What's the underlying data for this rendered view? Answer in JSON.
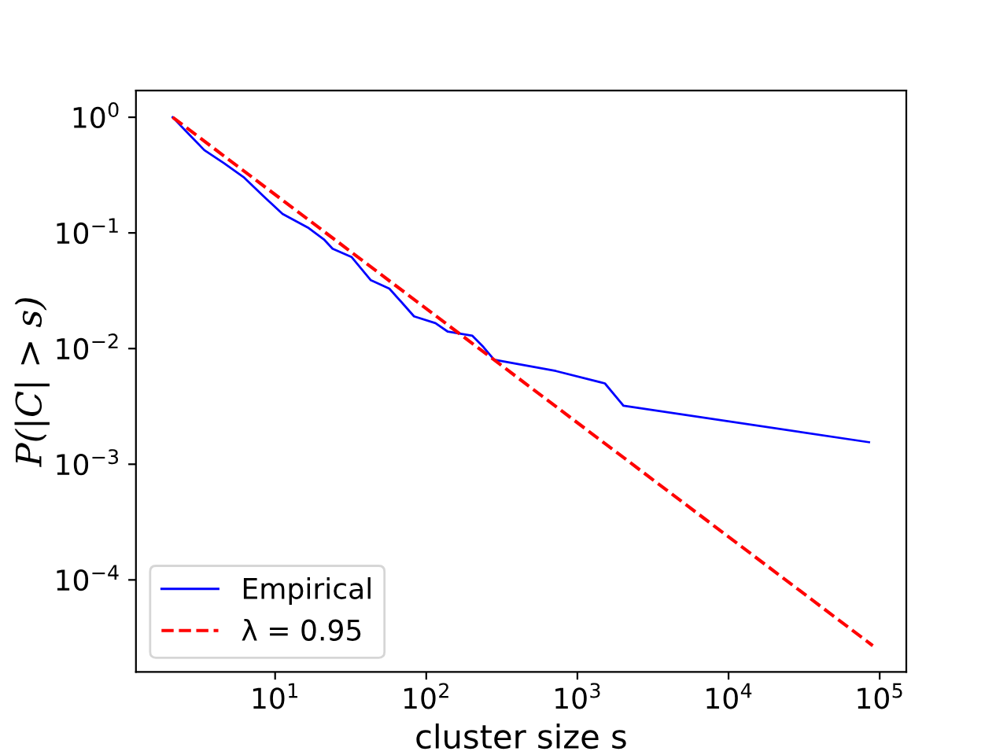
{
  "chart_data": {
    "type": "line",
    "xlabel": "cluster size s",
    "ylabel": "P(|C| > s)",
    "log": "xy",
    "legend": "bottom left",
    "grid": false,
    "xlim": [
      1.2,
      150000
    ],
    "ylim": [
      1.6e-05,
      1.7
    ],
    "xticks": [
      {
        "value": 10,
        "label": "10$^{1}$"
      },
      {
        "value": 100,
        "label": "10$^{2}$"
      },
      {
        "value": 1000,
        "label": "10$^{3}$"
      },
      {
        "value": 10000,
        "label": "10$^{4}$"
      },
      {
        "value": 100000,
        "label": "10$^{5}$"
      }
    ],
    "yticks": [
      {
        "value": 0.0001,
        "label": "10$^{−4}$"
      },
      {
        "value": 0.001,
        "label": "10$^{−3}$"
      },
      {
        "value": 0.01,
        "label": "10$^{−2}$"
      },
      {
        "value": 0.1,
        "label": "10$^{−1}$"
      },
      {
        "value": 1,
        "label": "10$^{0}$"
      }
    ],
    "series": [
      {
        "name": "Empirical",
        "color": "#0000ff",
        "line_style": "solid",
        "x": [
          2.1,
          2.7,
          3.4,
          4.6,
          6.25,
          8.3,
          11.2,
          16.7,
          21,
          24,
          32,
          43,
          57,
          69,
          83,
          115,
          139,
          202,
          239,
          281,
          720,
          1520,
          2020,
          85000
        ],
        "values": [
          1,
          0.71,
          0.52,
          0.4,
          0.3,
          0.21,
          0.146,
          0.11,
          0.088,
          0.073,
          0.062,
          0.039,
          0.033,
          0.025,
          0.019,
          0.0166,
          0.014,
          0.0129,
          0.0103,
          0.008,
          0.0064,
          0.005,
          0.0032,
          0.00155
        ]
      },
      {
        "name": "λ = 0.95",
        "color": "#ff0000",
        "line_style": "dashed",
        "x": [
          2.1,
          90000
        ],
        "values": [
          1,
          2.7e-05
        ]
      }
    ]
  }
}
